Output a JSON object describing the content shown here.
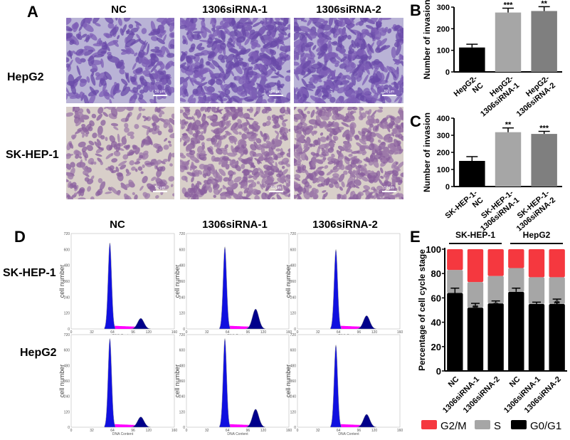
{
  "panel_labels": {
    "a": "A",
    "b": "B",
    "c": "C",
    "d": "D",
    "e": "E"
  },
  "panel_a": {
    "columns": [
      "NC",
      "1306siRNA-1",
      "1306siRNA-2"
    ],
    "rows": [
      "HepG2",
      "SK-HEP-1"
    ],
    "scale_bar": "50 μm"
  },
  "panel_d": {
    "columns": [
      "NC",
      "1306siRNA-1",
      "1306siRNA-2"
    ],
    "rows": [
      "SK-HEP-1",
      "HepG2"
    ],
    "ylabel": "cell number",
    "xlabel": "DNA Content",
    "yticks": [
      "0",
      "120",
      "240",
      "360",
      "480",
      "600",
      "720"
    ],
    "xticks": [
      "0",
      "32",
      "64",
      "96",
      "120",
      "160"
    ]
  },
  "chart_data": [
    {
      "id": "B",
      "type": "bar",
      "ylabel": "Number of invasion",
      "ylim": [
        0,
        300
      ],
      "yticks": [
        "0",
        "100",
        "200",
        "300"
      ],
      "categories": [
        [
          "HepG2-",
          "NC"
        ],
        [
          "HepG2-",
          "1306siRNA-1"
        ],
        [
          "HepG2-",
          "1306siRNA-2"
        ]
      ],
      "values": [
        113,
        275,
        282
      ],
      "errors": [
        15,
        20,
        20
      ],
      "significance": [
        "",
        "***",
        "**"
      ],
      "colors": [
        "#000000",
        "#a6a6a6",
        "#7f7f7f"
      ]
    },
    {
      "id": "C",
      "type": "bar",
      "ylabel": "Number of invasion",
      "ylim": [
        0,
        400
      ],
      "yticks": [
        "0",
        "100",
        "200",
        "300",
        "400"
      ],
      "categories": [
        [
          "SK-HEP-1-",
          "NC"
        ],
        [
          "SK-HEP-1-",
          "1306siRNA-1"
        ],
        [
          "SK-HEP-1-",
          "1306siRNA-2"
        ]
      ],
      "values": [
        150,
        318,
        308
      ],
      "errors": [
        25,
        25,
        15
      ],
      "significance": [
        "",
        "**",
        "***"
      ],
      "colors": [
        "#000000",
        "#a6a6a6",
        "#7f7f7f"
      ]
    },
    {
      "id": "E",
      "type": "stacked-bar",
      "ylabel": "Percentage of cell cycle stage",
      "ylim": [
        0,
        100
      ],
      "yticks": [
        "0",
        "20",
        "40",
        "60",
        "80",
        "100"
      ],
      "groups": [
        "SK-HEP-1",
        "HepG2"
      ],
      "categories": [
        "NC",
        "1306siRNA-1",
        "1306siRNA-2",
        "NC",
        "1306siRNA-1",
        "1306siRNA-2"
      ],
      "series": [
        {
          "name": "G0/G1",
          "color": "#000000",
          "values": [
            64,
            52,
            55.5,
            65,
            55,
            55
          ],
          "errors": [
            4,
            3.5,
            2,
            3,
            1.5,
            4
          ]
        },
        {
          "name": "S",
          "color": "#a6a6a6",
          "values": [
            19,
            21,
            22.5,
            19.5,
            22,
            22
          ]
        },
        {
          "name": "G2/M",
          "color": "#f5383f",
          "values": [
            17,
            27,
            22,
            15.5,
            23,
            23
          ]
        }
      ],
      "significance": [
        "",
        "**",
        "**",
        "",
        "***",
        "**"
      ],
      "legend": [
        "G2/M",
        "S",
        "G0/G1"
      ]
    },
    {
      "id": "D",
      "type": "histogram",
      "xlim": [
        0,
        160
      ],
      "ylim": [
        0,
        720
      ],
      "g1_peak_x": 60,
      "g2_peak_x": 108,
      "g1_peak_heights": [
        [
          650,
          620,
          600
        ],
        [
          690,
          690,
          640
        ]
      ],
      "g2_peak_heights": [
        [
          80,
          150,
          100
        ],
        [
          80,
          140,
          100
        ]
      ]
    }
  ]
}
